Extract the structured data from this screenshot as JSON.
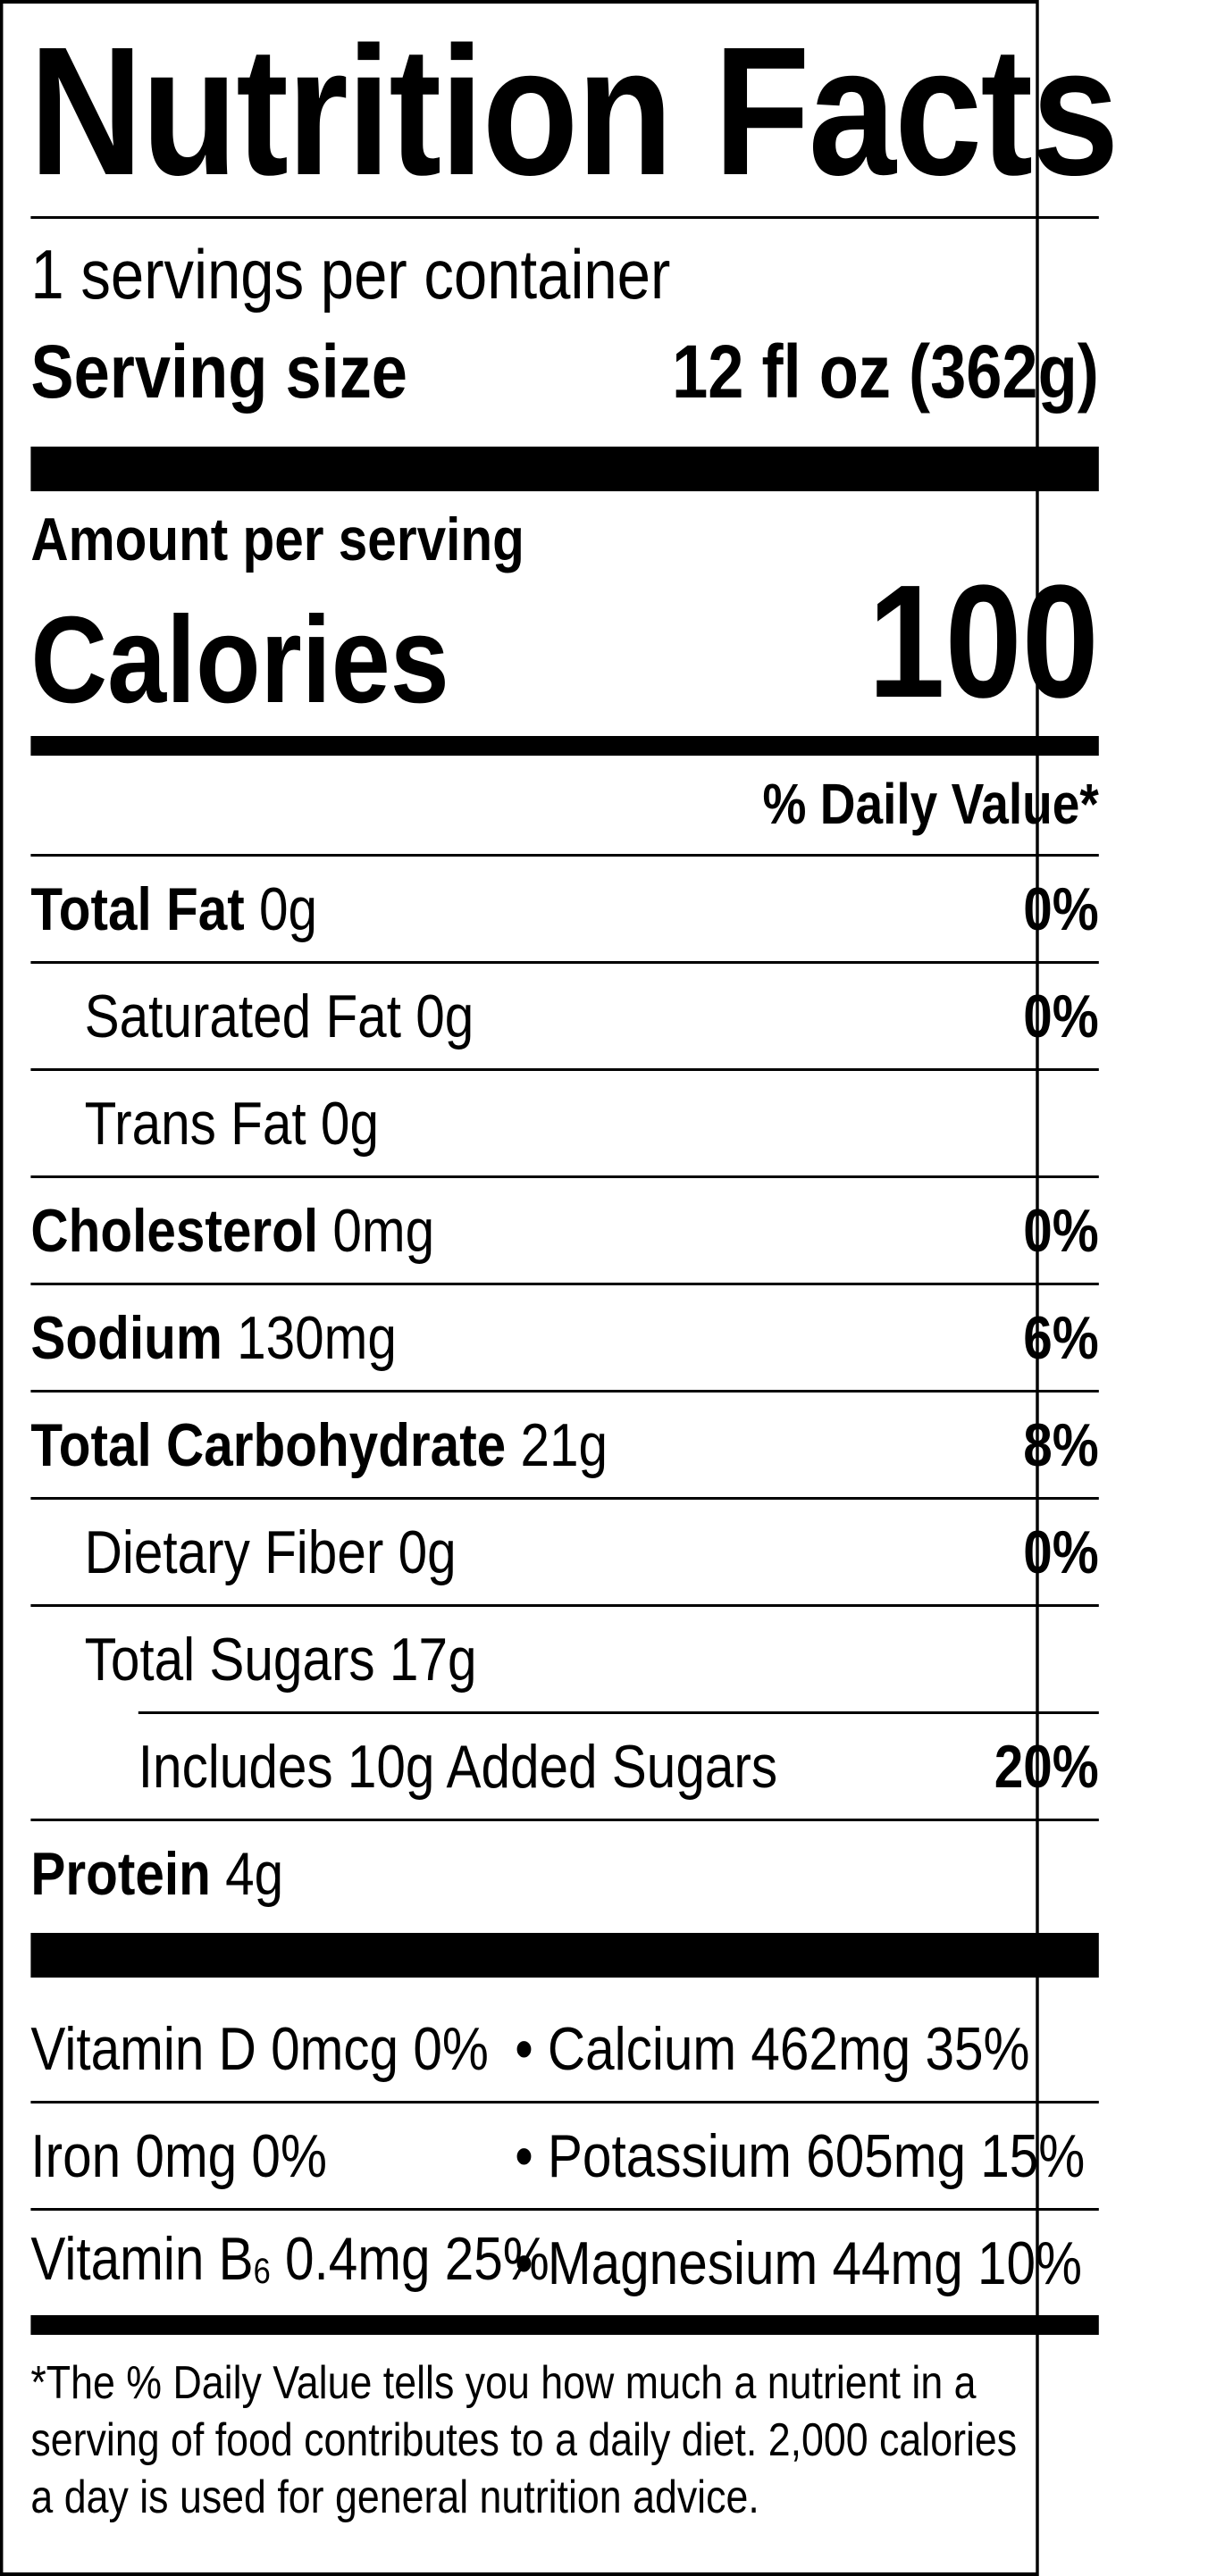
{
  "title": "Nutrition Facts",
  "servings": "1 servings per container",
  "serving_size": {
    "label": "Serving size",
    "value": "12 fl oz (362g)"
  },
  "amount_per_serving": "Amount per serving",
  "calories": {
    "label": "Calories",
    "value": "100"
  },
  "dv_header": "% Daily Value*",
  "nutrients": [
    {
      "name": "Total Fat",
      "amount": "0g",
      "dv": "0%"
    },
    {
      "name": "Saturated Fat",
      "amount": "0g",
      "dv": "0%"
    },
    {
      "name": "Trans Fat",
      "amount": "0g",
      "dv": ""
    },
    {
      "name": "Cholesterol",
      "amount": "0mg",
      "dv": "0%"
    },
    {
      "name": "Sodium",
      "amount": "130mg",
      "dv": "6%"
    },
    {
      "name": "Total Carbohydrate",
      "amount": "21g",
      "dv": "8%"
    },
    {
      "name": "Dietary Fiber",
      "amount": "0g",
      "dv": "0%"
    },
    {
      "name": "Total Sugars",
      "amount": "17g",
      "dv": ""
    },
    {
      "name": "Includes 10g Added Sugars",
      "amount": "",
      "dv": "20%"
    },
    {
      "name": "Protein",
      "amount": "4g",
      "dv": ""
    }
  ],
  "vitamins": [
    {
      "left": "Vitamin D 0mcg 0%",
      "right": "• Calcium 462mg 35%"
    },
    {
      "left": "Iron 0mg 0%",
      "right": "• Potassium 605mg 15%"
    },
    {
      "left_prefix": "Vitamin B",
      "left_sub": "6",
      "left_suffix": " 0.4mg 25%",
      "right": "• Magnesium 44mg 10%"
    }
  ],
  "footnote": "*The % Daily Value tells you how much a nutrient in a serving of food contributes to a daily diet. 2,000 calories a day is used for general nutrition advice."
}
